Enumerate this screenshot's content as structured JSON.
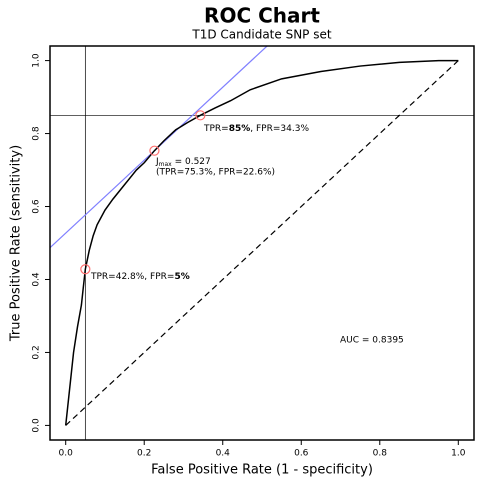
{
  "chart_data": {
    "type": "line",
    "title": "ROC Chart",
    "subtitle": "T1D Candidate SNP set",
    "x_label": "False Positive Rate (1 - specificity)",
    "y_label": "True Positive Rate (sensitivity)",
    "xlim": [
      -0.04,
      1.04
    ],
    "ylim": [
      -0.04,
      1.04
    ],
    "xticks": [
      {
        "value": 0,
        "label": "0.0"
      },
      0.2,
      0.4,
      0.6,
      0.8,
      {
        "value": 1,
        "label": "1.0"
      }
    ],
    "yticks": [
      {
        "value": 0,
        "label": "0.0"
      },
      0.2,
      0.4,
      0.6,
      0.8,
      {
        "value": 1,
        "label": "1.0"
      }
    ],
    "color": "#000000",
    "x": [
      0,
      0.005,
      0.01,
      0.015,
      0.02,
      0.03,
      0.04,
      0.045,
      0.05,
      0.06,
      0.07,
      0.08,
      0.1,
      0.12,
      0.15,
      0.18,
      0.2,
      0.226,
      0.25,
      0.28,
      0.31,
      0.343,
      0.38,
      0.42,
      0.47,
      0.55,
      0.65,
      0.75,
      0.85,
      0.95,
      1.0
    ],
    "y": [
      0,
      0.05,
      0.1,
      0.15,
      0.2,
      0.27,
      0.33,
      0.38,
      0.428,
      0.48,
      0.52,
      0.55,
      0.59,
      0.62,
      0.66,
      0.7,
      0.72,
      0.753,
      0.78,
      0.81,
      0.83,
      0.85,
      0.87,
      0.89,
      0.92,
      0.95,
      0.97,
      0.985,
      0.995,
      1.0,
      1.0
    ],
    "youden_j": 0.527,
    "tangent_color": "#8080ff",
    "vline": 0.05,
    "hline": 0.85,
    "highlight_points": [
      {
        "x": 0.343,
        "y": 0.85
      },
      {
        "x": 0.226,
        "y": 0.753
      },
      {
        "x": 0.05,
        "y": 0.428
      }
    ],
    "highlight_color": "#ff7070",
    "annotations": [
      {
        "text": [
          "TPR=",
          "85%",
          ", FPR=34.3%"
        ]
      },
      {
        "text": [
          "J",
          "max",
          " = 0.527"
        ]
      },
      {
        "text": "(TPR=75.3%, FPR=22.6%)"
      },
      {
        "text": [
          "TPR=42.8%, FPR=",
          "5%"
        ]
      },
      {
        "text": "AUC = 0.8395"
      }
    ]
  }
}
